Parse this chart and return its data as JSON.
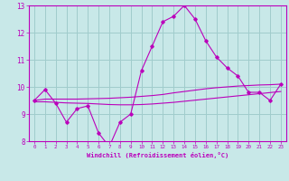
{
  "xlabel": "Windchill (Refroidissement éolien,°C)",
  "xlim": [
    -0.5,
    23.5
  ],
  "ylim": [
    8,
    13
  ],
  "yticks": [
    8,
    9,
    10,
    11,
    12,
    13
  ],
  "xticks": [
    0,
    1,
    2,
    3,
    4,
    5,
    6,
    7,
    8,
    9,
    10,
    11,
    12,
    13,
    14,
    15,
    16,
    17,
    18,
    19,
    20,
    21,
    22,
    23
  ],
  "bg_color": "#c8e8e8",
  "grid_color": "#a0cccc",
  "line_color": "#bb00bb",
  "series1_x": [
    0,
    1,
    2,
    3,
    4,
    5,
    6,
    7,
    8,
    9,
    10,
    11,
    12,
    13,
    14,
    15,
    16,
    17,
    18,
    19,
    20,
    21,
    22,
    23
  ],
  "series1_y": [
    9.5,
    9.9,
    9.4,
    8.7,
    9.2,
    9.3,
    8.3,
    7.8,
    8.7,
    9.0,
    10.6,
    11.5,
    12.4,
    12.6,
    13.0,
    12.5,
    11.7,
    11.1,
    10.7,
    10.4,
    9.8,
    9.8,
    9.5,
    10.1
  ],
  "series2_x": [
    0,
    1,
    2,
    3,
    4,
    5,
    6,
    7,
    8,
    9,
    10,
    11,
    12,
    13,
    14,
    15,
    16,
    17,
    18,
    19,
    20,
    21,
    22,
    23
  ],
  "series2_y": [
    9.5,
    9.55,
    9.55,
    9.55,
    9.55,
    9.56,
    9.57,
    9.58,
    9.6,
    9.62,
    9.65,
    9.68,
    9.72,
    9.78,
    9.83,
    9.88,
    9.93,
    9.97,
    10.0,
    10.03,
    10.05,
    10.07,
    10.08,
    10.1
  ],
  "series3_x": [
    0,
    1,
    2,
    3,
    4,
    5,
    6,
    7,
    8,
    9,
    10,
    11,
    12,
    13,
    14,
    15,
    16,
    17,
    18,
    19,
    20,
    21,
    22,
    23
  ],
  "series3_y": [
    9.45,
    9.45,
    9.43,
    9.41,
    9.4,
    9.39,
    9.37,
    9.35,
    9.34,
    9.34,
    9.35,
    9.37,
    9.4,
    9.43,
    9.47,
    9.51,
    9.55,
    9.59,
    9.63,
    9.67,
    9.71,
    9.75,
    9.79,
    9.83
  ]
}
